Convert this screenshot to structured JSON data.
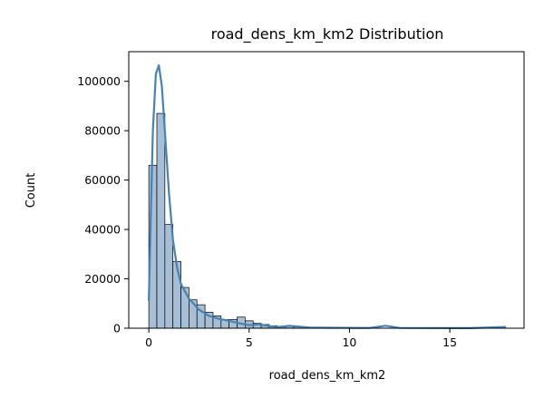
{
  "chart_data": {
    "type": "histogram",
    "title": "road_dens_km_km2 Distribution",
    "xlabel": "road_dens_km_km2",
    "ylabel": "Count",
    "xlim": [
      -1.0,
      18.7
    ],
    "ylim": [
      0,
      112000
    ],
    "xticks": [
      0,
      5,
      10,
      15
    ],
    "yticks": [
      0,
      20000,
      40000,
      60000,
      80000,
      100000
    ],
    "grid": false,
    "colors": {
      "bar_fill": "#a7bfd6",
      "bar_edge": "#000000",
      "kde_line": "#4682b4"
    },
    "bins": {
      "start": 0.0,
      "width": 0.4,
      "counts": [
        66000,
        87000,
        42000,
        27000,
        16500,
        11500,
        9500,
        6500,
        5000,
        3500,
        3500,
        4500,
        3000,
        2000,
        1500,
        1000,
        500,
        1000,
        500,
        300,
        200,
        200,
        150,
        150,
        100,
        100,
        100,
        80,
        60,
        60,
        50,
        40,
        30,
        30,
        20,
        20,
        20,
        20,
        20,
        10,
        10,
        10,
        10,
        10,
        10
      ]
    },
    "kde": {
      "x": [
        0.0,
        0.2,
        0.35,
        0.5,
        0.65,
        0.8,
        1.0,
        1.2,
        1.4,
        1.6,
        2.0,
        2.5,
        3.0,
        3.5,
        4.0,
        4.5,
        5.0,
        5.5,
        6.0,
        6.5,
        7.0,
        8.0,
        9.0,
        10.0,
        11.0,
        11.8,
        12.5,
        14.0,
        16.0,
        17.8
      ],
      "y": [
        11000,
        80000,
        103000,
        106500,
        98000,
        80000,
        55000,
        36000,
        25000,
        18000,
        12000,
        7500,
        5000,
        3800,
        3000,
        2000,
        1200,
        1600,
        800,
        500,
        1000,
        300,
        200,
        150,
        100,
        1000,
        100,
        60,
        40,
        500
      ]
    }
  }
}
